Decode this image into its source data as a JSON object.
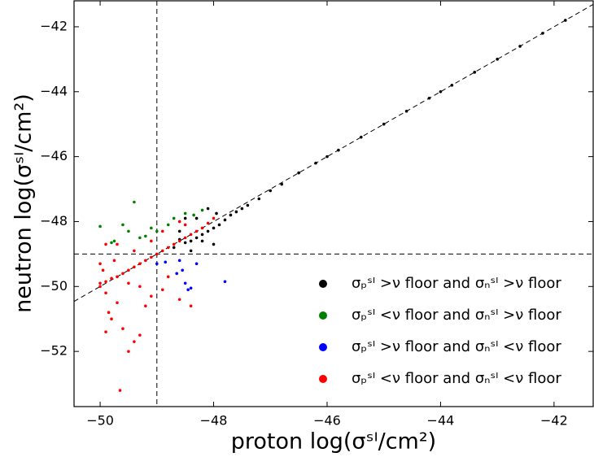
{
  "chart_data": {
    "type": "scatter",
    "x_label": "proton log(σˢᴵ/cm²)",
    "y_label": "neutron log(σˢᴵ/cm²)",
    "xlim": [
      -50.46,
      -41.31
    ],
    "ylim": [
      -53.7,
      -41.2
    ],
    "xticks": [
      {
        "value": -50,
        "label": "−50"
      },
      {
        "value": -48,
        "label": "−48"
      },
      {
        "value": -46,
        "label": "−46"
      },
      {
        "value": -44,
        "label": "−44"
      },
      {
        "value": -42,
        "label": "−42"
      }
    ],
    "yticks": [
      {
        "value": -52,
        "label": "−52"
      },
      {
        "value": -50,
        "label": "−50"
      },
      {
        "value": -48,
        "label": "−48"
      },
      {
        "value": -46,
        "label": "−46"
      },
      {
        "value": -44,
        "label": "−44"
      },
      {
        "value": -42,
        "label": "−42"
      }
    ],
    "vline": -49,
    "hline": -49,
    "diagonal": true,
    "legend": "lower right",
    "series": [
      {
        "name": "σₚˢᴵ >ν floor and σₙˢᴵ >ν floor",
        "color": "#000000",
        "x": [
          -41.8,
          -42.2,
          -42.6,
          -43.0,
          -43.4,
          -43.8,
          -44.2,
          -44.6,
          -45.0,
          -45.4,
          -45.8,
          -46.2,
          -46.5,
          -46.8,
          -47.0,
          -47.2,
          -47.4,
          -47.5,
          -47.7,
          -47.8,
          -47.9,
          -48.0,
          -48.1,
          -48.2,
          -48.3,
          -48.4,
          -48.5,
          -48.6,
          -48.3,
          -48.5,
          -48.1,
          -48.2,
          -48.0,
          -48.4,
          -48.7,
          -47.95,
          -48.6,
          -47.6,
          -46.0,
          -44.0
        ],
        "y": [
          -41.8,
          -42.2,
          -42.6,
          -43.0,
          -43.4,
          -43.8,
          -44.2,
          -44.6,
          -45.0,
          -45.4,
          -45.8,
          -46.2,
          -46.5,
          -46.85,
          -47.05,
          -47.3,
          -47.5,
          -47.6,
          -47.8,
          -47.95,
          -48.1,
          -48.2,
          -48.3,
          -48.4,
          -48.5,
          -48.6,
          -48.65,
          -48.55,
          -47.9,
          -47.9,
          -47.6,
          -48.6,
          -48.7,
          -48.9,
          -48.8,
          -47.75,
          -48.3,
          -47.7,
          -46.0,
          -44.0
        ]
      },
      {
        "name": "σₚˢᴵ <ν floor and σₙˢᴵ >ν floor",
        "color": "#008000",
        "x": [
          -50.0,
          -49.8,
          -49.75,
          -49.4,
          -49.3,
          -49.5,
          -49.2,
          -49.1,
          -49.0,
          -48.8,
          -48.7,
          -48.5,
          -48.35,
          -48.2,
          -49.6
        ],
        "y": [
          -48.15,
          -48.65,
          -48.6,
          -47.4,
          -48.5,
          -48.3,
          -48.45,
          -48.2,
          -48.3,
          -48.1,
          -47.9,
          -47.75,
          -47.8,
          -47.65,
          -48.1
        ]
      },
      {
        "name": "σₚˢᴵ >ν floor and σₙˢᴵ <ν floor",
        "color": "#0000ff",
        "x": [
          -49.0,
          -48.85,
          -48.6,
          -48.55,
          -48.5,
          -48.4,
          -48.45,
          -48.3,
          -48.65,
          -47.8
        ],
        "y": [
          -49.3,
          -49.25,
          -49.2,
          -49.5,
          -49.9,
          -50.05,
          -50.1,
          -49.3,
          -49.6,
          -49.85
        ]
      },
      {
        "name": "σₚˢᴵ <ν floor and σₙˢᴵ <ν floor",
        "color": "#ff0000",
        "x": [
          -50.0,
          -49.9,
          -49.8,
          -49.7,
          -49.6,
          -49.5,
          -49.4,
          -49.3,
          -49.2,
          -49.1,
          -49.0,
          -48.9,
          -48.8,
          -48.7,
          -48.6,
          -48.5,
          -48.4,
          -48.3,
          -48.2,
          -48.1,
          -48.0,
          -50.0,
          -49.95,
          -49.9,
          -49.85,
          -49.9,
          -49.8,
          -49.7,
          -49.6,
          -49.5,
          -49.4,
          -49.3,
          -49.65,
          -49.2,
          -49.1,
          -48.9,
          -48.8,
          -48.6,
          -48.4,
          -48.9,
          -49.1,
          -49.4,
          -49.7,
          -49.9,
          -48.5,
          -48.6,
          -49.5,
          -49.75,
          -50.0,
          -49.3
        ],
        "y": [
          -49.9,
          -49.85,
          -49.75,
          -49.7,
          -49.6,
          -49.5,
          -49.4,
          -49.3,
          -49.2,
          -49.1,
          -49.0,
          -48.9,
          -48.8,
          -48.7,
          -48.6,
          -48.5,
          -48.4,
          -48.3,
          -48.2,
          -48.05,
          -47.9,
          -49.3,
          -49.5,
          -50.2,
          -50.8,
          -51.4,
          -51.0,
          -50.5,
          -51.3,
          -52.0,
          -51.7,
          -51.5,
          -53.2,
          -50.6,
          -50.3,
          -50.1,
          -49.7,
          -50.4,
          -50.6,
          -48.3,
          -48.6,
          -48.9,
          -48.7,
          -48.7,
          -48.1,
          -48.0,
          -49.9,
          -49.2,
          -50.0,
          -50.0
        ]
      }
    ]
  }
}
